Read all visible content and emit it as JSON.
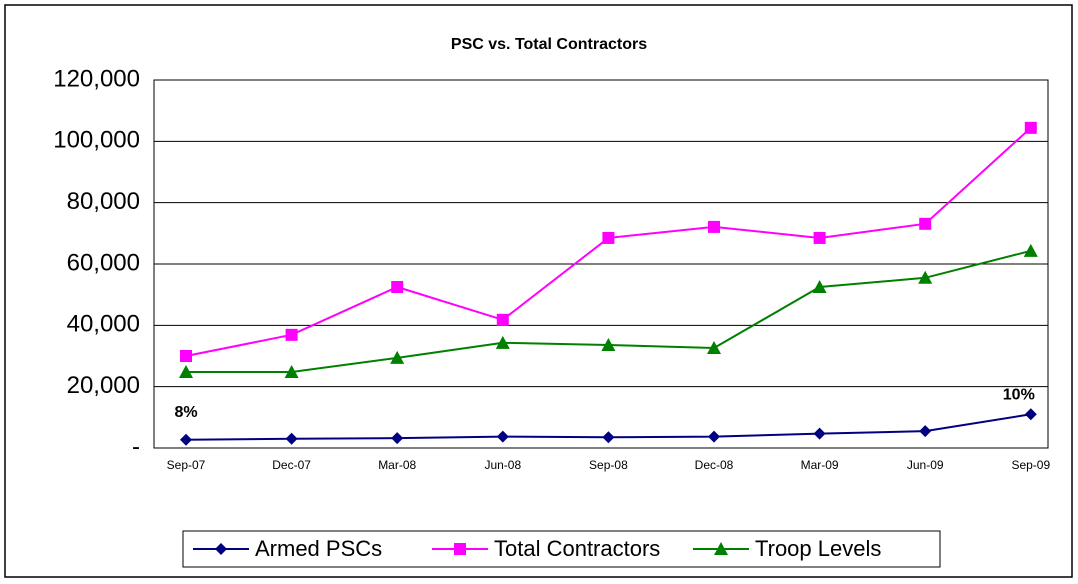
{
  "chart_data": {
    "type": "line",
    "title": "PSC vs. Total Contractors",
    "categories": [
      "Sep-07",
      "Dec-07",
      "Mar-08",
      "Jun-08",
      "Sep-08",
      "Dec-08",
      "Mar-09",
      "Jun-09",
      "Sep-09"
    ],
    "series": [
      {
        "name": "Armed PSCs",
        "color": "#000080",
        "marker": "diamond",
        "values": [
          2700,
          3000,
          3200,
          3700,
          3500,
          3700,
          4700,
          5500,
          11000
        ]
      },
      {
        "name": "Total Contractors",
        "color": "#ff00ff",
        "marker": "square",
        "values": [
          30000,
          36900,
          52500,
          41800,
          68500,
          72100,
          68500,
          73100,
          104400
        ]
      },
      {
        "name": "Troop Levels",
        "color": "#008000",
        "marker": "triangle",
        "values": [
          24800,
          24800,
          29400,
          34300,
          33600,
          32600,
          52500,
          55500,
          64300
        ]
      }
    ],
    "annotations": [
      "8%",
      "10%"
    ],
    "ylim": [
      0,
      120000
    ],
    "yticks": [
      {
        "value": 0,
        "label": "-"
      },
      {
        "value": 20000,
        "label": "20,000"
      },
      {
        "value": 40000,
        "label": "40,000"
      },
      {
        "value": 60000,
        "label": "60,000"
      },
      {
        "value": 80000,
        "label": "80,000"
      },
      {
        "value": 100000,
        "label": "100,000"
      },
      {
        "value": 120000,
        "label": "120,000"
      }
    ],
    "grid": true,
    "legend": "bottom"
  }
}
